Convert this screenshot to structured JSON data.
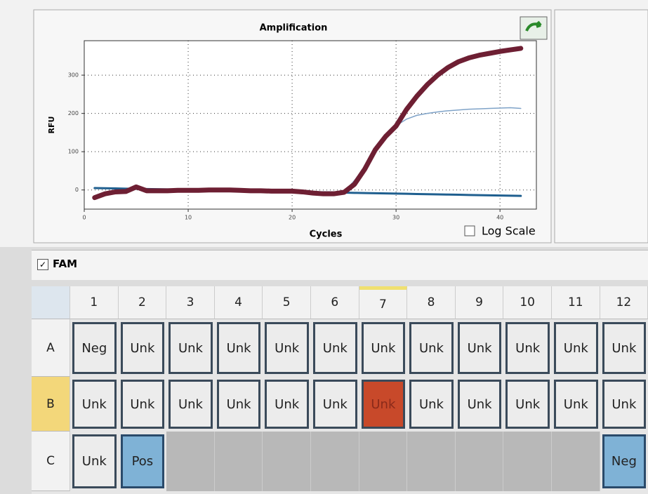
{
  "chart_data": {
    "type": "line",
    "title": "Amplification",
    "xlabel": "Cycles",
    "ylabel": "RFU",
    "x": [
      1,
      2,
      3,
      4,
      5,
      6,
      7,
      8,
      9,
      10,
      11,
      12,
      13,
      14,
      15,
      16,
      17,
      18,
      19,
      20,
      21,
      22,
      23,
      24,
      25,
      26,
      27,
      28,
      29,
      30,
      31,
      32,
      33,
      34,
      35,
      36,
      37,
      38,
      39,
      40,
      41,
      42
    ],
    "series": [
      {
        "color": "#1f5f8f",
        "width": 3,
        "values": [
          5,
          4.5,
          4,
          3.5,
          3,
          2.5,
          2,
          1.5,
          1,
          0.5,
          0,
          -0.5,
          -1,
          -1.5,
          -2,
          -2.5,
          -3,
          -3.5,
          -4,
          -4.5,
          -5,
          -5.5,
          -6,
          -6.5,
          -7,
          -7.5,
          -8,
          -8.5,
          -9,
          -9.5,
          -10,
          -10.5,
          -11,
          -11.5,
          -12,
          -12.5,
          -13,
          -13.5,
          -14,
          -14.5,
          -15,
          -15.5
        ]
      },
      {
        "color": "#7fa3c8",
        "width": 1.5,
        "values": [
          -20,
          -10,
          -5,
          -4,
          8,
          -2,
          -2,
          -2,
          -1,
          -1,
          -1,
          0,
          0,
          0,
          -1,
          -2,
          -2,
          -3,
          -3,
          -3,
          -5,
          -8,
          -10,
          -10,
          -5,
          25,
          60,
          105,
          140,
          168,
          185,
          195,
          200,
          204,
          207,
          209,
          211,
          212,
          213,
          214,
          215,
          213
        ]
      },
      {
        "color": "#6e1f33",
        "width": 7,
        "values": [
          -20,
          -10,
          -5,
          -4,
          8,
          -2,
          -2,
          -2,
          -1,
          -1,
          -1,
          0,
          0,
          0,
          -1,
          -2,
          -2,
          -3,
          -3,
          -3,
          -5,
          -8,
          -10,
          -10,
          -6,
          15,
          55,
          105,
          140,
          167,
          210,
          245,
          275,
          300,
          320,
          335,
          345,
          352,
          357,
          362,
          366,
          370
        ]
      }
    ],
    "xlim": [
      0,
      43.5
    ],
    "ylim": [
      -50,
      390
    ],
    "xticks": [
      0,
      10,
      20,
      30,
      40
    ],
    "yticks": [
      0,
      100,
      200,
      300
    ],
    "grid": true
  },
  "controls": {
    "log_scale": "Log Scale",
    "channel": "FAM"
  },
  "plate": {
    "columns": [
      "1",
      "2",
      "3",
      "4",
      "5",
      "6",
      "7",
      "8",
      "9",
      "10",
      "11",
      "12"
    ],
    "rows": [
      {
        "label": "A",
        "cells": [
          "Neg",
          "Unk",
          "Unk",
          "Unk",
          "Unk",
          "Unk",
          "Unk",
          "Unk",
          "Unk",
          "Unk",
          "Unk",
          "Unk"
        ]
      },
      {
        "label": "B",
        "cells": [
          "Unk",
          "Unk",
          "Unk",
          "Unk",
          "Unk",
          "Unk",
          "Unk",
          "Unk",
          "Unk",
          "Unk",
          "Unk",
          "Unk"
        ]
      },
      {
        "label": "C",
        "cells": [
          "Unk",
          "Pos",
          null,
          null,
          null,
          null,
          null,
          null,
          null,
          null,
          null,
          "Neg"
        ]
      }
    ]
  }
}
